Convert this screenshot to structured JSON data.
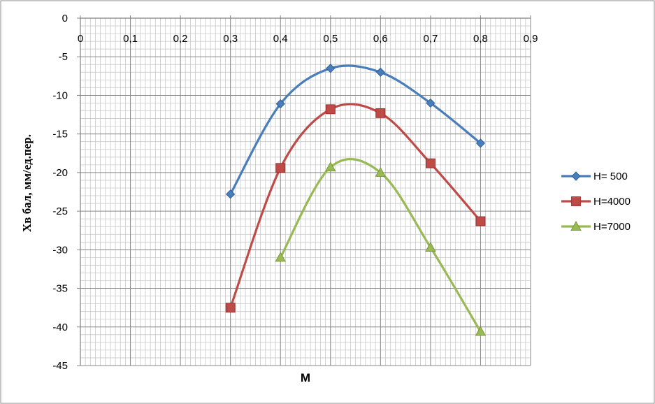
{
  "chart_data": {
    "type": "line",
    "title": "",
    "xlabel": "M",
    "ylabel": "Хв бал, мм/ед.пер.",
    "xlim": [
      0,
      0.9
    ],
    "ylim": [
      -45,
      0
    ],
    "x_major_step": 0.1,
    "y_major_step": 5,
    "x_minor_step": 0.01,
    "y_minor_step": 1,
    "x_ticks": [
      "0",
      "0,1",
      "0,2",
      "0,3",
      "0,4",
      "0,5",
      "0,6",
      "0,7",
      "0,8",
      "0,9"
    ],
    "y_ticks": [
      "0",
      "-5",
      "-10",
      "-15",
      "-20",
      "-25",
      "-30",
      "-35",
      "-40",
      "-45"
    ],
    "x_axis_at_top": true,
    "grid": true,
    "smooth": true,
    "legend_position": "right",
    "series": [
      {
        "name": "H= 500",
        "color": "#4a7ebb",
        "marker": "diamond",
        "x": [
          0.3,
          0.4,
          0.5,
          0.6,
          0.7,
          0.8
        ],
        "y": [
          -22.8,
          -11.1,
          -6.5,
          -7.0,
          -11.0,
          -16.2
        ]
      },
      {
        "name": "H=4000",
        "color": "#be4b48",
        "marker": "square",
        "x": [
          0.3,
          0.4,
          0.5,
          0.6,
          0.7,
          0.8
        ],
        "y": [
          -37.5,
          -19.4,
          -11.8,
          -12.3,
          -18.8,
          -26.3
        ]
      },
      {
        "name": "H=7000",
        "color": "#98b954",
        "marker": "triangle",
        "x": [
          0.4,
          0.5,
          0.6,
          0.7,
          0.8
        ],
        "y": [
          -31.0,
          -19.3,
          -20.0,
          -29.7,
          -40.6
        ]
      }
    ]
  }
}
